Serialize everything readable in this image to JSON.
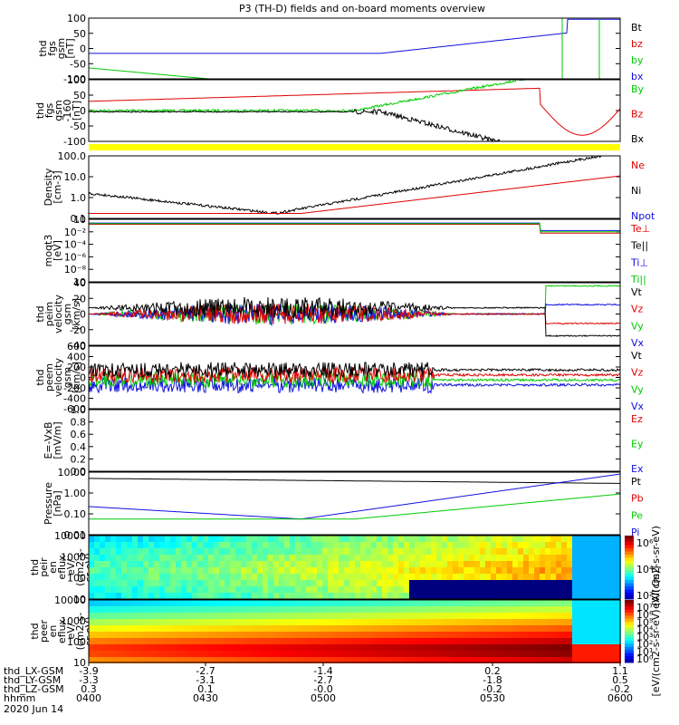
{
  "title": "P3 (TH-D) fields and on-board moments overview",
  "colors": {
    "black": "#000000",
    "red": "#e00000",
    "green": "#00cc00",
    "blue": "#1010e0",
    "yellow": "#ffff00"
  },
  "chart_data": [
    {
      "type": "line",
      "id": "fgs1",
      "ylabel": [
        "thd",
        "fgs",
        "gsm",
        "[nT]"
      ],
      "ylim": [
        -100,
        100
      ],
      "yticks": [
        "100",
        "50",
        "0",
        "-50",
        "-100"
      ],
      "legend": [
        {
          "label": "Bt",
          "color": "black"
        },
        {
          "label": "bz",
          "color": "red"
        },
        {
          "label": "by",
          "color": "green"
        },
        {
          "label": "bx",
          "color": "blue"
        }
      ]
    },
    {
      "type": "line",
      "id": "fgs2",
      "ylabel": [
        "thd",
        "fgs",
        "gsm",
        "-160",
        "[nT]"
      ],
      "ylim": [
        -125,
        100
      ],
      "yticks": [
        "100",
        "50",
        "0",
        "-50",
        "-100"
      ],
      "legend": [
        {
          "label": "By",
          "color": "green"
        },
        {
          "label": "Bz",
          "color": "red"
        },
        {
          "label": "Bx",
          "color": "black"
        }
      ]
    },
    {
      "type": "line",
      "id": "density",
      "ylabel": [
        "Density",
        "[cm-3]"
      ],
      "scale": "log",
      "ylim": [
        0.1,
        100
      ],
      "yticks": [
        "100.0",
        "10.0",
        "1.0",
        "0.1"
      ],
      "legend": [
        {
          "label": "Ne",
          "color": "red"
        },
        {
          "label": "Ni",
          "color": "black"
        },
        {
          "label": "Npot",
          "color": "blue"
        }
      ]
    },
    {
      "type": "line",
      "id": "temp",
      "ylabel": [
        "moqt3",
        "[eV]"
      ],
      "scale": "log",
      "yticks": [
        "10",
        "10⁻²",
        "10⁻⁴",
        "10⁻⁶",
        "10⁻⁸",
        "10"
      ],
      "legend": [
        {
          "label": "Te⊥",
          "color": "red"
        },
        {
          "label": "Te||",
          "color": "black"
        },
        {
          "label": "Ti⊥",
          "color": "blue"
        },
        {
          "label": "Ti||",
          "color": "green"
        }
      ]
    },
    {
      "type": "line",
      "id": "peim",
      "ylabel": [
        "thd",
        "peim",
        "velocity",
        "gsm",
        "[km/s]"
      ],
      "ylim": [
        -40,
        40
      ],
      "yticks": [
        "40",
        "20",
        "0",
        "-20",
        "-40"
      ],
      "legend": [
        {
          "label": "Vt",
          "color": "black"
        },
        {
          "label": "Vz",
          "color": "red"
        },
        {
          "label": "Vy",
          "color": "green"
        },
        {
          "label": "Vx",
          "color": "blue"
        }
      ]
    },
    {
      "type": "line",
      "id": "peem",
      "ylabel": [
        "thd",
        "peem",
        "velocity",
        "gsm",
        "[km/s]"
      ],
      "ylim": [
        -600,
        600
      ],
      "yticks": [
        "600",
        "400",
        "200",
        "0",
        "-200",
        "-400",
        "-600"
      ],
      "legend": [
        {
          "label": "Vt",
          "color": "black"
        },
        {
          "label": "Vz",
          "color": "red"
        },
        {
          "label": "Vy",
          "color": "green"
        },
        {
          "label": "Vx",
          "color": "blue"
        }
      ]
    },
    {
      "type": "line",
      "id": "efield",
      "ylabel": [
        "E=-VxB",
        "[mV/m]"
      ],
      "ylim": [
        0,
        1
      ],
      "yticks": [
        "1.0",
        "0.8",
        "0.6",
        "0.4",
        "0.2",
        "0.0"
      ],
      "legend": [
        {
          "label": "Ez",
          "color": "red"
        },
        {
          "label": "Ey",
          "color": "green"
        },
        {
          "label": "Ex",
          "color": "blue"
        }
      ]
    },
    {
      "type": "line",
      "id": "pressure",
      "ylabel": [
        "Pressure",
        "[nPa]"
      ],
      "scale": "log",
      "ylim": [
        0.003,
        30
      ],
      "yticks": [
        "10.00",
        "1.00",
        "0.10",
        "0.01"
      ],
      "legend": [
        {
          "label": "Pt",
          "color": "black"
        },
        {
          "label": "Pb",
          "color": "red"
        },
        {
          "label": "Pe",
          "color": "green"
        },
        {
          "label": "Pi",
          "color": "blue"
        }
      ]
    },
    {
      "type": "heatmap",
      "id": "peir",
      "ylabel": [
        "thd",
        "peir",
        "en",
        "eflux",
        "eV/",
        "(cm2-s-",
        "sr-eV)"
      ],
      "scale": "log",
      "ylim": [
        7,
        20000
      ],
      "yticks": [
        "10000",
        "1000",
        "100",
        "10"
      ]
    },
    {
      "type": "heatmap",
      "id": "peer",
      "ylabel": [
        "thd",
        "peer",
        "en",
        "eflux",
        "eV/",
        "(cm2-s-",
        "sr-eV)"
      ],
      "scale": "log",
      "ylim": [
        7,
        20000
      ],
      "yticks": [
        "10000",
        "1000",
        "100",
        "10"
      ]
    }
  ],
  "colorbars": [
    {
      "ticks": [
        "10⁶",
        "10⁴",
        "10²"
      ],
      "label": "eV/(cm2-s-sr-eV)"
    },
    {
      "ticks": [
        "10⁷",
        "10⁶",
        "10⁵",
        "10⁴",
        "10³",
        "10²",
        "10¹",
        "10⁰"
      ],
      "label": "[eV/(cm2-s-sr-eV) (All Qs)]"
    }
  ],
  "x_axis": {
    "rows": [
      {
        "label": "thd_LX-GSM",
        "values": [
          "-3.9",
          "-2.7",
          "-1.4",
          "0.2",
          "1.1"
        ]
      },
      {
        "label": "thd_LY-GSM",
        "values": [
          "-3.3",
          "-3.1",
          "-2.7",
          "-1.8",
          "0.5"
        ]
      },
      {
        "label": "thd_LZ-GSM",
        "values": [
          "0.3",
          "0.1",
          "-0.0",
          "-0.2",
          "-0.2"
        ]
      },
      {
        "label": "hhmm",
        "values": [
          "0400",
          "0430",
          "0500",
          "0530",
          "0600"
        ]
      }
    ],
    "date": "2020 Jun 14"
  }
}
